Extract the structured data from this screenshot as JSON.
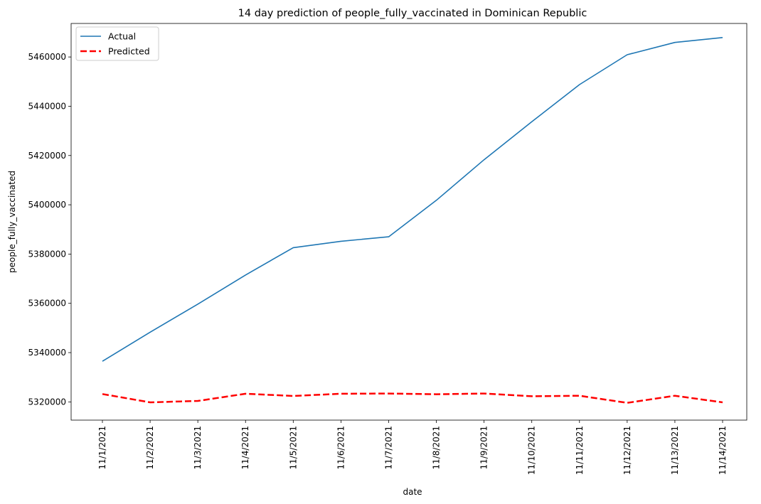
{
  "chart_data": {
    "type": "line",
    "title": "14 day prediction of people_fully_vaccinated in Dominican Republic",
    "xlabel": "date",
    "ylabel": "people_fully_vaccinated",
    "categories": [
      "11/1/2021",
      "11/2/2021",
      "11/3/2021",
      "11/4/2021",
      "11/5/2021",
      "11/6/2021",
      "11/7/2021",
      "11/8/2021",
      "11/9/2021",
      "11/10/2021",
      "11/11/2021",
      "11/12/2021",
      "11/13/2021",
      "11/14/2021"
    ],
    "yticks": [
      5320000,
      5340000,
      5360000,
      5380000,
      5400000,
      5420000,
      5440000,
      5460000
    ],
    "ylim": [
      5312600,
      5473600
    ],
    "grid": false,
    "legend_position": "top-left",
    "series": [
      {
        "name": "Actual",
        "color": "#1f77b4",
        "style": "solid",
        "values": [
          5336500,
          5348300,
          5359700,
          5371500,
          5382600,
          5385200,
          5387000,
          5401800,
          5418300,
          5433700,
          5448800,
          5460900,
          5465900,
          5467900
        ]
      },
      {
        "name": "Predicted",
        "color": "#ff0000",
        "style": "dashed",
        "values": [
          5323200,
          5319800,
          5320400,
          5323300,
          5322400,
          5323300,
          5323400,
          5323100,
          5323400,
          5322300,
          5322500,
          5319600,
          5322500,
          5319800
        ]
      }
    ]
  }
}
